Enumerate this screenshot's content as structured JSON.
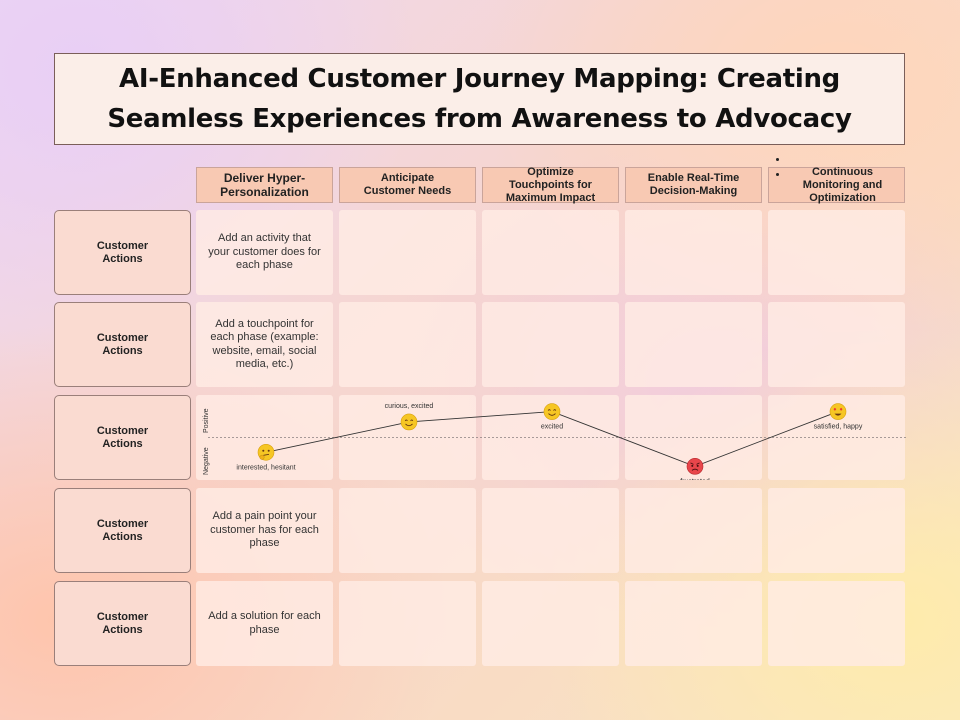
{
  "title": {
    "line1": "AI-Enhanced Customer Journey Mapping: Creating",
    "line2": "Seamless Experiences from Awareness to Advocacy"
  },
  "phases": [
    {
      "lines": [
        "Deliver Hyper-",
        "Personalization"
      ]
    },
    {
      "lines": [
        "Anticipate",
        "Customer Needs"
      ]
    },
    {
      "lines": [
        "Optimize",
        "Touchpoints for",
        "Maximum Impact"
      ]
    },
    {
      "lines": [
        "Enable Real-Time",
        "Decision-Making"
      ]
    },
    {
      "lines": [
        "Continuous",
        "Monitoring and",
        "Optimization"
      ]
    }
  ],
  "rows": [
    {
      "label": "Customer Actions",
      "first_cell": "Add an activity that your customer does for each phase"
    },
    {
      "label": "Customer Actions",
      "first_cell": "Add a touchpoint for each phase (example: website, email, social media, etc.)"
    },
    {
      "label": "Customer Actions",
      "first_cell": ""
    },
    {
      "label": "Customer Actions",
      "first_cell": "Add a pain point your customer has for each phase"
    },
    {
      "label": "Customer Actions",
      "first_cell": "Add a solution for each phase"
    }
  ],
  "emotion_graph": {
    "axis_positive": "Positive",
    "axis_negative": "Negative",
    "points": [
      {
        "phase": "Deliver Hyper-Personalization",
        "label": "interested, hesitant",
        "emoji": "thinking-face-icon",
        "level": -0.4
      },
      {
        "phase": "Anticipate Customer Needs",
        "label": "curious, excited",
        "emoji": "smiling-face-icon",
        "level": 0.42
      },
      {
        "phase": "Optimize Touchpoints for Maximum Impact",
        "label": "excited",
        "emoji": "smiling-face-icon",
        "level": 0.7
      },
      {
        "phase": "Enable Real-Time Decision-Making",
        "label": "frustrated",
        "emoji": "angry-face-icon",
        "level": -0.78
      },
      {
        "phase": "Continuous Monitoring and Optimization",
        "label": "satisfied, happy",
        "emoji": "heart-eyes-face-icon",
        "level": 0.7
      }
    ]
  },
  "colors": {
    "phase_header": "#f8c9b3",
    "row_label": "#fadbd1",
    "cell": "#ffece4",
    "emoji_yellow": "#f6c624",
    "emoji_red": "#e8464b"
  }
}
